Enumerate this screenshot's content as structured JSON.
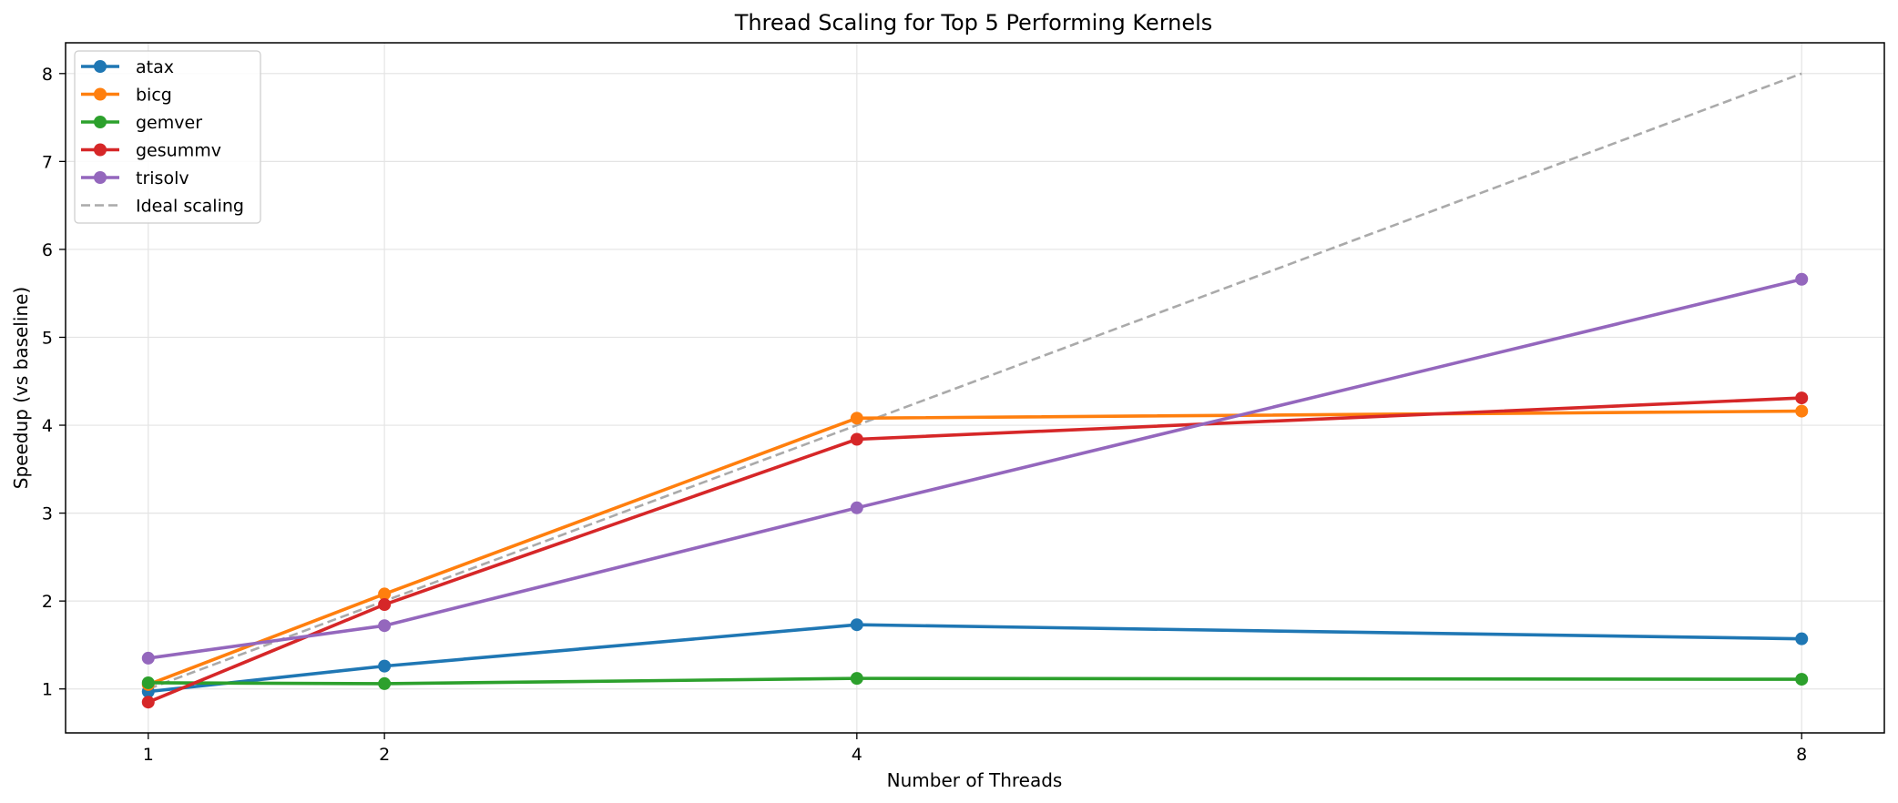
{
  "chart_data": {
    "type": "line",
    "title": "Thread Scaling for Top 5 Performing Kernels",
    "xlabel": "Number of Threads",
    "ylabel": "Speedup (vs baseline)",
    "x": [
      1,
      2,
      4,
      8
    ],
    "xlim": [
      0.65,
      8.35
    ],
    "ylim": [
      0.5,
      8.35
    ],
    "xticks": [
      "1",
      "2",
      "4",
      "8"
    ],
    "yticks": [
      "1",
      "2",
      "3",
      "4",
      "5",
      "6",
      "7",
      "8"
    ],
    "grid": true,
    "legend_position": "top-left",
    "series": [
      {
        "name": "atax",
        "values": [
          0.97,
          1.26,
          1.73,
          1.57
        ],
        "color": "#1f77b4",
        "style": "solid",
        "markers": true
      },
      {
        "name": "bicg",
        "values": [
          1.05,
          2.08,
          4.08,
          4.16
        ],
        "color": "#ff7f0e",
        "style": "solid",
        "markers": true
      },
      {
        "name": "gemver",
        "values": [
          1.07,
          1.06,
          1.12,
          1.11
        ],
        "color": "#2ca02c",
        "style": "solid",
        "markers": true
      },
      {
        "name": "gesummv",
        "values": [
          0.85,
          1.96,
          3.84,
          4.31
        ],
        "color": "#d62728",
        "style": "solid",
        "markers": true
      },
      {
        "name": "trisolv",
        "values": [
          1.35,
          1.72,
          3.06,
          5.66
        ],
        "color": "#9467bd",
        "style": "solid",
        "markers": true
      },
      {
        "name": "Ideal scaling",
        "values": [
          1,
          2,
          4,
          8
        ],
        "color": "#aaaaaa",
        "style": "dashed",
        "markers": false
      }
    ]
  }
}
